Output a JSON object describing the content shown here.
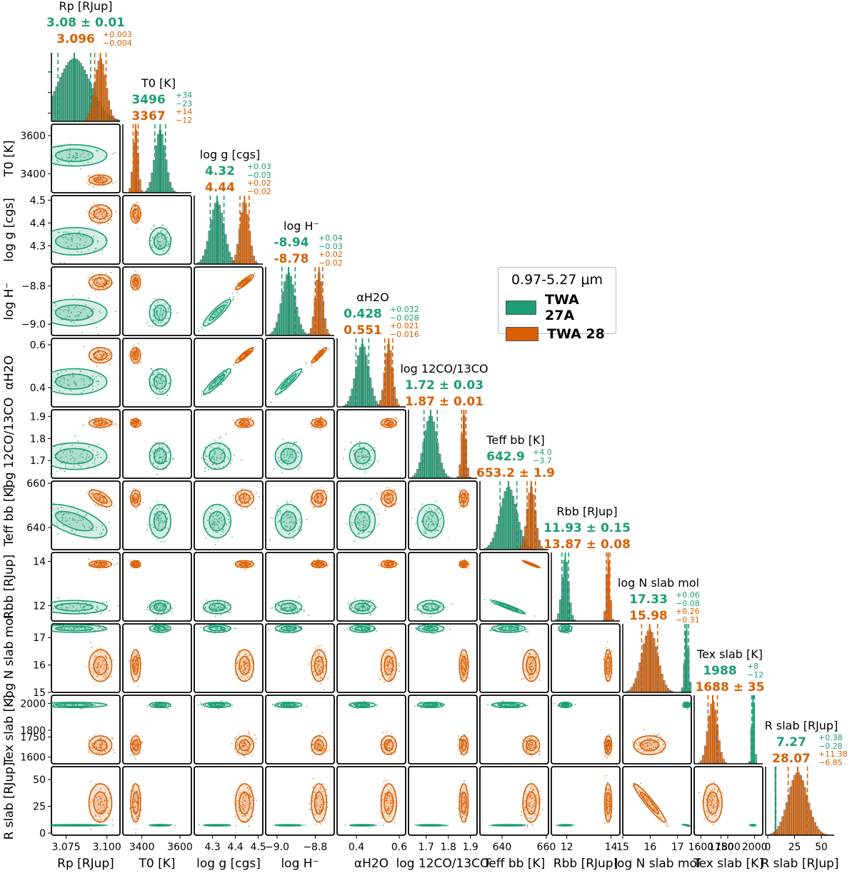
{
  "chart_data": {
    "type": "scatter",
    "title": "",
    "colors": {
      "twa27a": "#1b9e77",
      "twa28": "#d95f02"
    },
    "legend": {
      "title": "0.97-5.27 μm",
      "entries": [
        "TWA 27A",
        "TWA 28"
      ],
      "placement": "right-center"
    },
    "series": [
      "TWA 27A",
      "TWA 28"
    ],
    "parameters": [
      {
        "key": "Rp",
        "title": "Rp [RJup]",
        "xlabel": "Rp [RJup]",
        "ylabel": "",
        "range": [
          3.066,
          3.108
        ],
        "ticks": [
          3.075,
          3.1
        ],
        "tick_labels": [
          "3.075",
          "3.100"
        ],
        "mean_a": 3.08,
        "sd_a": 0.01,
        "mean_b": 3.096,
        "sd_b": 0.0035,
        "value_a": "3.08 ± 0.01",
        "value_b": "3.096",
        "b_up": "+0.003",
        "b_lo": "−0.004"
      },
      {
        "key": "T0",
        "title": "T0 [K]",
        "xlabel": "T0 [K]",
        "ylabel": "T0 [K]",
        "range": [
          3300,
          3660
        ],
        "ticks": [
          3400,
          3600
        ],
        "tick_labels": [
          "3400",
          "3600"
        ],
        "mean_a": 3496,
        "sd_a": 28,
        "mean_b": 3367,
        "sd_b": 13,
        "value_a": "3496",
        "a_up": "+34",
        "a_lo": "−23",
        "value_b": "3367",
        "b_up": "+14",
        "b_lo": "−12"
      },
      {
        "key": "logg",
        "title": "log g [cgs]",
        "xlabel": "log g [cgs]",
        "ylabel": "log g [cgs]",
        "range": [
          4.22,
          4.52
        ],
        "ticks": [
          4.3,
          4.4,
          4.5
        ],
        "tick_labels": [
          "4.3",
          "4.4",
          "4.5"
        ],
        "mean_a": 4.32,
        "sd_a": 0.03,
        "mean_b": 4.44,
        "sd_b": 0.02,
        "value_a": "4.32",
        "a_up": "+0.03",
        "a_lo": "−0.03",
        "value_b": "4.44",
        "b_up": "+0.02",
        "b_lo": "−0.02"
      },
      {
        "key": "logH",
        "title": "log H⁻",
        "xlabel": "log H⁻",
        "ylabel": "log H⁻",
        "range": [
          -9.06,
          -8.7
        ],
        "ticks": [
          -9.0,
          -8.8
        ],
        "tick_labels": [
          "−9.0",
          "−8.8"
        ],
        "mean_a": -8.94,
        "sd_a": 0.035,
        "mean_b": -8.78,
        "sd_b": 0.02,
        "value_a": "-8.94",
        "a_up": "+0.04",
        "a_lo": "−0.03",
        "value_b": "-8.78",
        "b_up": "+0.02",
        "b_lo": "−0.02"
      },
      {
        "key": "alpha",
        "title": "αH2O",
        "xlabel": "αH2O",
        "ylabel": "αH2O",
        "range": [
          0.31,
          0.63
        ],
        "ticks": [
          0.4,
          0.6
        ],
        "tick_labels": [
          "0.4",
          "0.6"
        ],
        "mean_a": 0.428,
        "sd_a": 0.03,
        "mean_b": 0.551,
        "sd_b": 0.018,
        "value_a": "0.428",
        "a_up": "+0.032",
        "a_lo": "−0.028",
        "value_b": "0.551",
        "b_up": "+0.021",
        "b_lo": "−0.016"
      },
      {
        "key": "co",
        "title": "log 12CO/13CO",
        "xlabel": "log 12CO/13CO",
        "ylabel": "log 12CO/13CO",
        "range": [
          1.62,
          1.93
        ],
        "ticks": [
          1.7,
          1.8,
          1.9
        ],
        "tick_labels": [
          "1.7",
          "1.8",
          "1.9"
        ],
        "mean_a": 1.72,
        "sd_a": 0.03,
        "mean_b": 1.87,
        "sd_b": 0.01,
        "value_a": "1.72 ± 0.03",
        "value_b": "1.87 ± 0.01"
      },
      {
        "key": "teff",
        "title": "Teff bb [K]",
        "xlabel": "Teff bb [K]",
        "ylabel": "Teff bb [K]",
        "range": [
          630,
          661
        ],
        "ticks": [
          640,
          660
        ],
        "tick_labels": [
          "640",
          "660"
        ],
        "mean_a": 642.9,
        "sd_a": 3.8,
        "mean_b": 653.2,
        "sd_b": 1.9,
        "value_a": "642.9",
        "a_up": "+4.0",
        "a_lo": "−3.7",
        "value_b": "653.2 ± 1.9"
      },
      {
        "key": "rbb",
        "title": "Rbb [RJup]",
        "xlabel": "Rbb [RJup]",
        "ylabel": "Rbb [RJup]",
        "range": [
          11.3,
          14.4
        ],
        "ticks": [
          12,
          14
        ],
        "tick_labels": [
          "12",
          "14"
        ],
        "mean_a": 11.93,
        "sd_a": 0.15,
        "mean_b": 13.87,
        "sd_b": 0.08,
        "value_a": "11.93 ± 0.15",
        "value_b": "13.87 ± 0.08"
      },
      {
        "key": "nmol",
        "title": "log N slab mol",
        "xlabel": "log N slab mol",
        "ylabel": "log N slab mol",
        "range": [
          15.0,
          17.5
        ],
        "ticks": [
          15,
          16,
          17
        ],
        "tick_labels": [
          "15",
          "16",
          "17"
        ],
        "mean_a": 17.33,
        "sd_a": 0.07,
        "mean_b": 15.98,
        "sd_b": 0.29,
        "value_a": "17.33",
        "a_up": "+0.06",
        "a_lo": "−0.08",
        "value_b": "15.98",
        "b_up": "+0.26",
        "b_lo": "−0.31"
      },
      {
        "key": "tex",
        "title": "Tex slab [K]",
        "xlabel": "Tex slab [K]",
        "ylabel": "Tex slab [K]",
        "range": [
          1550,
          2060
        ],
        "ticks": [
          1600,
          1750,
          1800,
          2000
        ],
        "tick_labels": [
          "1600",
          "1750",
          "1800",
          "2000"
        ],
        "mean_a": 1988,
        "sd_a": 10,
        "mean_b": 1688,
        "sd_b": 35,
        "value_a": "1988",
        "a_up": "+8",
        "a_lo": "−12",
        "value_b": "1688 ± 35"
      },
      {
        "key": "rslab",
        "title": "R slab [RJup]",
        "xlabel": "R slab [RJup]",
        "ylabel": "R slab [RJup]",
        "range": [
          -2,
          62
        ],
        "ticks": [
          0,
          25,
          50
        ],
        "tick_labels": [
          "0",
          "25",
          "50"
        ],
        "mean_a": 7.27,
        "sd_a": 0.33,
        "mean_b": 28.07,
        "sd_b": 9,
        "value_a": "7.27",
        "a_up": "+0.38",
        "a_lo": "−0.28",
        "value_b": "28.07",
        "b_up": "+11.38",
        "b_lo": "−6.85"
      }
    ]
  }
}
